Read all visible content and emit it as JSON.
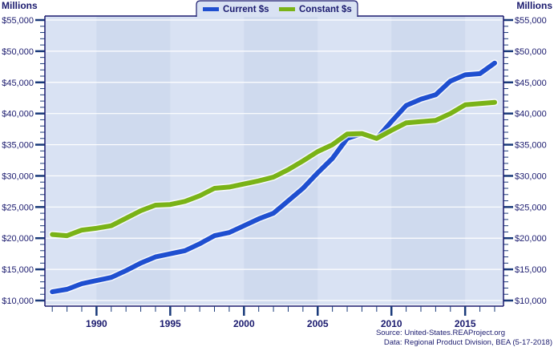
{
  "chart_data": {
    "type": "line",
    "left_axis_unit": "Millions",
    "right_axis_unit": "Millions",
    "x": [
      1987,
      1988,
      1989,
      1990,
      1991,
      1992,
      1993,
      1994,
      1995,
      1996,
      1997,
      1998,
      1999,
      2000,
      2001,
      2002,
      2003,
      2004,
      2005,
      2006,
      2007,
      2008,
      2009,
      2010,
      2011,
      2012,
      2013,
      2014,
      2015,
      2016,
      2017
    ],
    "series": [
      {
        "name": "Current $s",
        "color": "#1f4fd0",
        "values": [
          11400,
          11800,
          12700,
          13200,
          13700,
          14800,
          16000,
          17000,
          17500,
          18000,
          19100,
          20400,
          20900,
          22000,
          23100,
          24000,
          26000,
          28000,
          30500,
          32800,
          36000,
          36800,
          36000,
          38700,
          41300,
          42300,
          43000,
          45200,
          46200,
          46400,
          48100
        ]
      },
      {
        "name": "Constant $s",
        "color": "#7ab317",
        "values": [
          20600,
          20400,
          21300,
          21600,
          22000,
          23200,
          24400,
          25300,
          25400,
          25900,
          26800,
          28000,
          28200,
          28700,
          29200,
          29800,
          31000,
          32400,
          33900,
          35000,
          36700,
          36800,
          36000,
          37300,
          38500,
          38700,
          38900,
          40000,
          41400,
          41600,
          41800
        ]
      }
    ],
    "xlim": [
      1986.5,
      2017.6
    ],
    "ylim": [
      10000,
      55000
    ],
    "x_ticks": [
      "1990",
      "1995",
      "2000",
      "2005",
      "2010",
      "2015"
    ],
    "y_ticks": [
      "$10,000",
      "$15,000",
      "$20,000",
      "$25,000",
      "$30,000",
      "$35,000",
      "$40,000",
      "$45,000",
      "$50,000",
      "$55,000"
    ],
    "grid": true,
    "legend": "top-center",
    "background": "#d9e2f3",
    "band_color": "#cfdaee"
  },
  "source": "Source: United-States.REAProject.org",
  "data_note": "Data: Regional Product Division, BEA (5-17-2018)"
}
